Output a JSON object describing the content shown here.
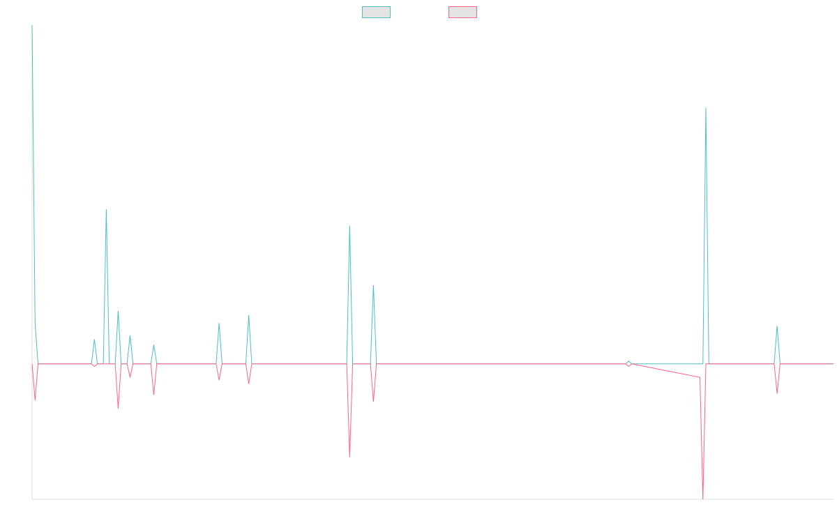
{
  "chart_data": {
    "type": "line",
    "title": "",
    "xlabel": "",
    "ylabel": "",
    "grid": false,
    "legend": {
      "placement": "top-center",
      "entries": [
        {
          "series_index": 0,
          "label": ""
        },
        {
          "series_index": 1,
          "label": ""
        }
      ]
    },
    "ylim": [
      -1,
      2.5
    ],
    "xlim": [
      0,
      135
    ],
    "series": [
      {
        "color": "#4bc0c0",
        "fill": "#e4e4e4",
        "points": [
          [
            0,
            2.5
          ],
          [
            0.5,
            0.3
          ],
          [
            1,
            0
          ],
          [
            10,
            0
          ],
          [
            10.5,
            0.18
          ],
          [
            11,
            0
          ],
          [
            12,
            0
          ],
          [
            12.5,
            1.14
          ],
          [
            13,
            0
          ],
          [
            14,
            0
          ],
          [
            14.5,
            0.39
          ],
          [
            15,
            0
          ],
          [
            16,
            0
          ],
          [
            16.5,
            0.21
          ],
          [
            17,
            0
          ],
          [
            20,
            0
          ],
          [
            20.5,
            0.14
          ],
          [
            21,
            0
          ],
          [
            31,
            0
          ],
          [
            31.5,
            0.3
          ],
          [
            32,
            0
          ],
          [
            36,
            0
          ],
          [
            36.5,
            0.36
          ],
          [
            37,
            0
          ],
          [
            53,
            0
          ],
          [
            53.5,
            1.02
          ],
          [
            54,
            0
          ],
          [
            57,
            0
          ],
          [
            57.5,
            0.58
          ],
          [
            58,
            0
          ],
          [
            100,
            0
          ],
          [
            100.5,
            0.02
          ],
          [
            101,
            0
          ],
          [
            113,
            0
          ],
          [
            113.5,
            1.89
          ],
          [
            114,
            0
          ],
          [
            125,
            0
          ],
          [
            125.5,
            0.28
          ],
          [
            126,
            0
          ],
          [
            135,
            0
          ]
        ]
      },
      {
        "color": "#ff6384",
        "fill": "#e4e4e4",
        "points": [
          [
            0,
            0
          ],
          [
            0.5,
            -0.27
          ],
          [
            1,
            0
          ],
          [
            10,
            0
          ],
          [
            10.5,
            -0.02
          ],
          [
            11,
            0
          ],
          [
            14,
            0
          ],
          [
            14.5,
            -0.33
          ],
          [
            15,
            0
          ],
          [
            16,
            0
          ],
          [
            16.5,
            -0.1
          ],
          [
            17,
            0
          ],
          [
            20,
            0
          ],
          [
            20.5,
            -0.23
          ],
          [
            21,
            0
          ],
          [
            31,
            0
          ],
          [
            31.5,
            -0.12
          ],
          [
            32,
            0
          ],
          [
            36,
            0
          ],
          [
            36.5,
            -0.15
          ],
          [
            37,
            0
          ],
          [
            53,
            0
          ],
          [
            53.5,
            -0.69
          ],
          [
            54,
            0
          ],
          [
            57,
            0
          ],
          [
            57.5,
            -0.28
          ],
          [
            58,
            0
          ],
          [
            100,
            0
          ],
          [
            100.5,
            -0.02
          ],
          [
            101,
            0
          ],
          [
            112.5,
            -0.1
          ],
          [
            113,
            -1.0
          ],
          [
            113.5,
            0
          ],
          [
            125,
            0
          ],
          [
            125.5,
            -0.22
          ],
          [
            126,
            0
          ],
          [
            135,
            0
          ]
        ]
      }
    ]
  }
}
